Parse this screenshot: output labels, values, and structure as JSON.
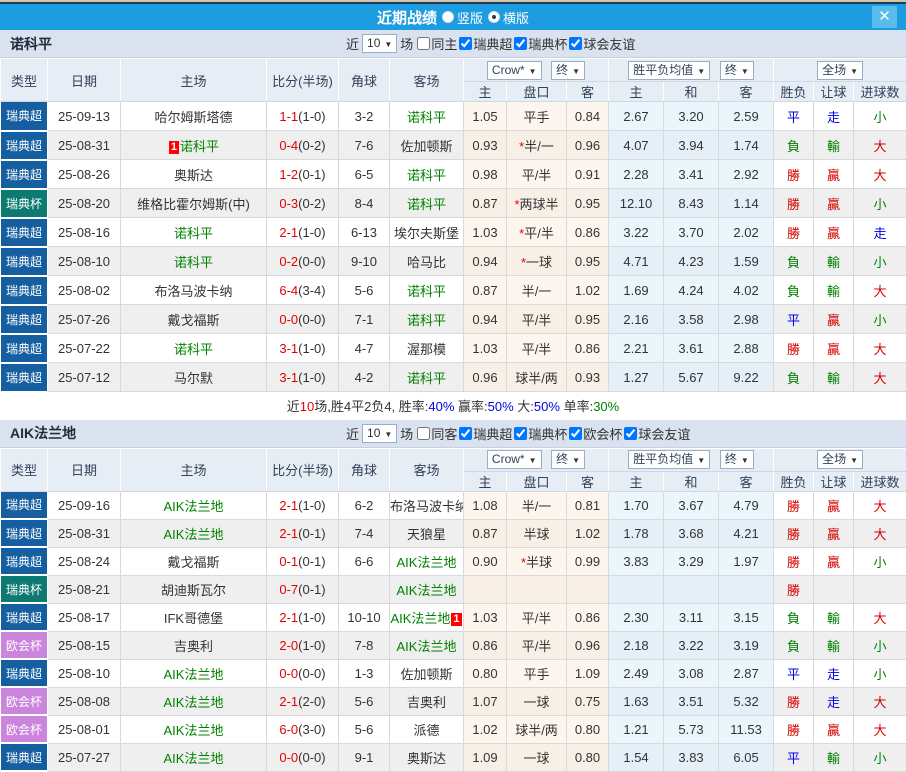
{
  "titlebar": {
    "title": "近期战绩",
    "radio_vertical": "竖版",
    "radio_horizontal": "横版",
    "close": "✕"
  },
  "filters": {
    "near_label": "近",
    "games_label": "场"
  },
  "columns": {
    "type": "类型",
    "date": "日期",
    "home": "主场",
    "score": "比分(半场)",
    "corner": "角球",
    "away": "客场",
    "crow": "Crow*",
    "final": "终",
    "avg": "胜平负均值",
    "final2": "终",
    "full": "全场",
    "odds_home": "主",
    "odds_handicap": "盘口",
    "odds_away": "客",
    "avg_home": "主",
    "avg_draw": "和",
    "avg_away": "客",
    "result": "胜负",
    "handicap_result": "让球",
    "goals": "进球数"
  },
  "colors": {
    "team_green": "#008000",
    "score_red": "#e80000",
    "bar_blue": "#1d9ce0"
  },
  "league_colors": {
    "瑞典超": "#155fa0",
    "瑞典杯": "#0d7a71",
    "欧会杯": "#cb85dc"
  },
  "result_colors": {
    "勝": "#d40000",
    "贏": "#d40000",
    "大": "#d40000",
    "負": "#008000",
    "輸": "#008000",
    "小": "#008000",
    "平": "#0000e6",
    "走": "#0000e6"
  },
  "sections": [
    {
      "team": "诺科平",
      "count": "10",
      "same": {
        "label": "同主",
        "checked": false
      },
      "leagues": [
        {
          "label": "瑞典超",
          "checked": true
        },
        {
          "label": "瑞典杯",
          "checked": true
        },
        {
          "label": "球会友谊",
          "checked": true
        }
      ],
      "rows": [
        {
          "league": "瑞典超",
          "date": "25-09-13",
          "home": {
            "name": "哈尔姆斯塔德"
          },
          "score": {
            "ft": "1-1",
            "ht": "(1-0)"
          },
          "corner": "3-2",
          "away": {
            "name": "诺科平",
            "team": true
          },
          "odds": [
            "1.05",
            "平手",
            "0.84"
          ],
          "avg": [
            "2.67",
            "3.20",
            "2.59"
          ],
          "results": [
            "平",
            "走",
            "小"
          ]
        },
        {
          "league": "瑞典超",
          "date": "25-08-31",
          "home": {
            "name": "诺科平",
            "team": true,
            "badge": "1",
            "badge_side": "left"
          },
          "score": {
            "ft": "0-4",
            "ht": "(0-2)"
          },
          "corner": "7-6",
          "away": {
            "name": "佐加顿斯"
          },
          "odds": [
            "0.93",
            "*半/一",
            "0.96"
          ],
          "avg": [
            "4.07",
            "3.94",
            "1.74"
          ],
          "results": [
            "負",
            "輸",
            "大"
          ]
        },
        {
          "league": "瑞典超",
          "date": "25-08-26",
          "home": {
            "name": "奥斯达"
          },
          "score": {
            "ft": "1-2",
            "ht": "(0-1)"
          },
          "corner": "6-5",
          "away": {
            "name": "诺科平",
            "team": true
          },
          "odds": [
            "0.98",
            "平/半",
            "0.91"
          ],
          "avg": [
            "2.28",
            "3.41",
            "2.92"
          ],
          "results": [
            "勝",
            "贏",
            "大"
          ]
        },
        {
          "league": "瑞典杯",
          "date": "25-08-20",
          "home": {
            "name": "维格比霍尔姆斯(中)"
          },
          "score": {
            "ft": "0-3",
            "ht": "(0-2)"
          },
          "corner": "8-4",
          "away": {
            "name": "诺科平",
            "team": true
          },
          "odds": [
            "0.87",
            "*两球半",
            "0.95"
          ],
          "avg": [
            "12.10",
            "8.43",
            "1.14"
          ],
          "results": [
            "勝",
            "贏",
            "小"
          ]
        },
        {
          "league": "瑞典超",
          "date": "25-08-16",
          "home": {
            "name": "诺科平",
            "team": true
          },
          "score": {
            "ft": "2-1",
            "ht": "(1-0)"
          },
          "corner": "6-13",
          "away": {
            "name": "埃尔夫斯堡"
          },
          "odds": [
            "1.03",
            "*平/半",
            "0.86"
          ],
          "avg": [
            "3.22",
            "3.70",
            "2.02"
          ],
          "results": [
            "勝",
            "贏",
            "走"
          ]
        },
        {
          "league": "瑞典超",
          "date": "25-08-10",
          "home": {
            "name": "诺科平",
            "team": true
          },
          "score": {
            "ft": "0-2",
            "ht": "(0-0)"
          },
          "corner": "9-10",
          "away": {
            "name": "哈马比"
          },
          "odds": [
            "0.94",
            "*一球",
            "0.95"
          ],
          "avg": [
            "4.71",
            "4.23",
            "1.59"
          ],
          "results": [
            "負",
            "輸",
            "小"
          ]
        },
        {
          "league": "瑞典超",
          "date": "25-08-02",
          "home": {
            "name": "布洛马波卡纳"
          },
          "score": {
            "ft": "6-4",
            "ht": "(3-4)"
          },
          "corner": "5-6",
          "away": {
            "name": "诺科平",
            "team": true
          },
          "odds": [
            "0.87",
            "半/一",
            "1.02"
          ],
          "avg": [
            "1.69",
            "4.24",
            "4.02"
          ],
          "results": [
            "負",
            "輸",
            "大"
          ]
        },
        {
          "league": "瑞典超",
          "date": "25-07-26",
          "home": {
            "name": "戴戈福斯"
          },
          "score": {
            "ft": "0-0",
            "ht": "(0-0)"
          },
          "corner": "7-1",
          "away": {
            "name": "诺科平",
            "team": true
          },
          "odds": [
            "0.94",
            "平/半",
            "0.95"
          ],
          "avg": [
            "2.16",
            "3.58",
            "2.98"
          ],
          "results": [
            "平",
            "贏",
            "小"
          ]
        },
        {
          "league": "瑞典超",
          "date": "25-07-22",
          "home": {
            "name": "诺科平",
            "team": true
          },
          "score": {
            "ft": "3-1",
            "ht": "(1-0)"
          },
          "corner": "4-7",
          "away": {
            "name": "渥那模"
          },
          "odds": [
            "1.03",
            "平/半",
            "0.86"
          ],
          "avg": [
            "2.21",
            "3.61",
            "2.88"
          ],
          "results": [
            "勝",
            "贏",
            "大"
          ]
        },
        {
          "league": "瑞典超",
          "date": "25-07-12",
          "home": {
            "name": "马尔默"
          },
          "score": {
            "ft": "3-1",
            "ht": "(1-0)"
          },
          "corner": "4-2",
          "away": {
            "name": "诺科平",
            "team": true
          },
          "odds": [
            "0.96",
            "球半/两",
            "0.93"
          ],
          "avg": [
            "1.27",
            "5.67",
            "9.22"
          ],
          "results": [
            "負",
            "輸",
            "大"
          ]
        }
      ],
      "summary": [
        {
          "t": "近",
          "c": "#333333"
        },
        {
          "t": "10",
          "c": "#e80000"
        },
        {
          "t": "场,胜4平2负4, 胜率:",
          "c": "#333333"
        },
        {
          "t": "40%",
          "c": "#0000e6"
        },
        {
          "t": " 赢率:",
          "c": "#333333"
        },
        {
          "t": "50%",
          "c": "#0000e6"
        },
        {
          "t": " 大:",
          "c": "#333333"
        },
        {
          "t": "50%",
          "c": "#0000e6"
        },
        {
          "t": " 单率:",
          "c": "#333333"
        },
        {
          "t": "30%",
          "c": "#008000"
        }
      ]
    },
    {
      "team": "AIK法兰地",
      "count": "10",
      "same": {
        "label": "同客",
        "checked": false
      },
      "leagues": [
        {
          "label": "瑞典超",
          "checked": true
        },
        {
          "label": "瑞典杯",
          "checked": true
        },
        {
          "label": "欧会杯",
          "checked": true
        },
        {
          "label": "球会友谊",
          "checked": true
        }
      ],
      "rows": [
        {
          "league": "瑞典超",
          "date": "25-09-16",
          "home": {
            "name": "AIK法兰地",
            "team": true
          },
          "score": {
            "ft": "2-1",
            "ht": "(1-0)"
          },
          "corner": "6-2",
          "away": {
            "name": "布洛马波卡纳"
          },
          "odds": [
            "1.08",
            "半/一",
            "0.81"
          ],
          "avg": [
            "1.70",
            "3.67",
            "4.79"
          ],
          "results": [
            "勝",
            "贏",
            "大"
          ]
        },
        {
          "league": "瑞典超",
          "date": "25-08-31",
          "home": {
            "name": "AIK法兰地",
            "team": true
          },
          "score": {
            "ft": "2-1",
            "ht": "(0-1)"
          },
          "corner": "7-4",
          "away": {
            "name": "天狼星"
          },
          "odds": [
            "0.87",
            "半球",
            "1.02"
          ],
          "avg": [
            "1.78",
            "3.68",
            "4.21"
          ],
          "results": [
            "勝",
            "贏",
            "大"
          ]
        },
        {
          "league": "瑞典超",
          "date": "25-08-24",
          "home": {
            "name": "戴戈福斯"
          },
          "score": {
            "ft": "0-1",
            "ht": "(0-1)"
          },
          "corner": "6-6",
          "away": {
            "name": "AIK法兰地",
            "team": true
          },
          "odds": [
            "0.90",
            "*半球",
            "0.99"
          ],
          "avg": [
            "3.83",
            "3.29",
            "1.97"
          ],
          "results": [
            "勝",
            "贏",
            "小"
          ]
        },
        {
          "league": "瑞典杯",
          "date": "25-08-21",
          "home": {
            "name": "胡迪斯瓦尔"
          },
          "score": {
            "ft": "0-7",
            "ht": "(0-1)"
          },
          "corner": "",
          "away": {
            "name": "AIK法兰地",
            "team": true
          },
          "odds": [
            "",
            "",
            ""
          ],
          "avg": [
            "",
            "",
            ""
          ],
          "results": [
            "勝",
            "",
            ""
          ]
        },
        {
          "league": "瑞典超",
          "date": "25-08-17",
          "home": {
            "name": "IFK哥德堡"
          },
          "score": {
            "ft": "2-1",
            "ht": "(1-0)"
          },
          "corner": "10-10",
          "away": {
            "name": "AIK法兰地",
            "team": true,
            "badge": "1",
            "badge_side": "right"
          },
          "odds": [
            "1.03",
            "平/半",
            "0.86"
          ],
          "avg": [
            "2.30",
            "3.11",
            "3.15"
          ],
          "results": [
            "負",
            "輸",
            "大"
          ]
        },
        {
          "league": "欧会杯",
          "date": "25-08-15",
          "home": {
            "name": "吉奥利"
          },
          "score": {
            "ft": "2-0",
            "ht": "(1-0)"
          },
          "corner": "7-8",
          "away": {
            "name": "AIK法兰地",
            "team": true
          },
          "odds": [
            "0.86",
            "平/半",
            "0.96"
          ],
          "avg": [
            "2.18",
            "3.22",
            "3.19"
          ],
          "results": [
            "負",
            "輸",
            "小"
          ]
        },
        {
          "league": "瑞典超",
          "date": "25-08-10",
          "home": {
            "name": "AIK法兰地",
            "team": true
          },
          "score": {
            "ft": "0-0",
            "ht": "(0-0)"
          },
          "corner": "1-3",
          "away": {
            "name": "佐加顿斯"
          },
          "odds": [
            "0.80",
            "平手",
            "1.09"
          ],
          "avg": [
            "2.49",
            "3.08",
            "2.87"
          ],
          "results": [
            "平",
            "走",
            "小"
          ]
        },
        {
          "league": "欧会杯",
          "date": "25-08-08",
          "home": {
            "name": "AIK法兰地",
            "team": true
          },
          "score": {
            "ft": "2-1",
            "ht": "(2-0)"
          },
          "corner": "5-6",
          "away": {
            "name": "吉奥利"
          },
          "odds": [
            "1.07",
            "一球",
            "0.75"
          ],
          "avg": [
            "1.63",
            "3.51",
            "5.32"
          ],
          "results": [
            "勝",
            "走",
            "大"
          ]
        },
        {
          "league": "欧会杯",
          "date": "25-08-01",
          "home": {
            "name": "AIK法兰地",
            "team": true
          },
          "score": {
            "ft": "6-0",
            "ht": "(3-0)"
          },
          "corner": "5-6",
          "away": {
            "name": "派德"
          },
          "odds": [
            "1.02",
            "球半/两",
            "0.80"
          ],
          "avg": [
            "1.21",
            "5.73",
            "11.53"
          ],
          "results": [
            "勝",
            "贏",
            "大"
          ]
        },
        {
          "league": "瑞典超",
          "date": "25-07-27",
          "home": {
            "name": "AIK法兰地",
            "team": true
          },
          "score": {
            "ft": "0-0",
            "ht": "(0-0)"
          },
          "corner": "9-1",
          "away": {
            "name": "奥斯达"
          },
          "odds": [
            "1.09",
            "一球",
            "0.80"
          ],
          "avg": [
            "1.54",
            "3.83",
            "6.05"
          ],
          "results": [
            "平",
            "輸",
            "小"
          ]
        }
      ]
    }
  ]
}
